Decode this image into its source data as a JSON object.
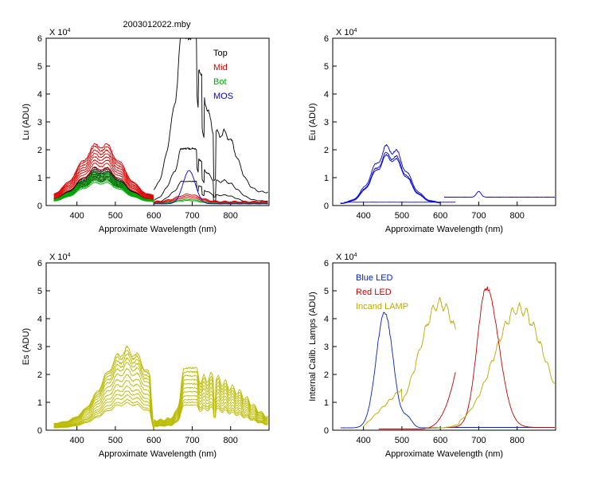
{
  "figure_title": "2003012022.mby",
  "colors": {
    "top": "#000000",
    "mid": "#dd0000",
    "bot": "#00aa00",
    "mos": "#0000dd",
    "es": "#bbbb00",
    "blue_led": "#0022cc",
    "red_led": "#cc0000",
    "lamp": "#bbaa00"
  },
  "chart_data": [
    {
      "id": "lu",
      "type": "line",
      "title": "2003012022.mby",
      "xlabel": "Approximate Wavelength (nm)",
      "ylabel": "Lu (ADU)",
      "multiplier_base": "X 10",
      "multiplier_exp": "4",
      "xlim": [
        320,
        900
      ],
      "ylim": [
        0,
        6
      ],
      "xticks": [
        "400",
        "500",
        "600",
        "700",
        "800"
      ],
      "yticks": [
        "0",
        "1",
        "2",
        "3",
        "4",
        "5",
        "6"
      ],
      "legend": [
        {
          "label": "Top",
          "color": "#000000"
        },
        {
          "label": "Mid",
          "color": "#dd0000"
        },
        {
          "label": "Bot",
          "color": "#00aa00"
        },
        {
          "label": "MOS",
          "color": "#0000dd"
        }
      ],
      "series": [
        {
          "name": "Top",
          "color": "#000000",
          "profile": "lu_vis",
          "scales": [
            0.92,
            0.98,
            1.04,
            1.1,
            1.16,
            1.22,
            1.28,
            1.34
          ]
        },
        {
          "name": "Mid",
          "color": "#dd0000",
          "profile": "lu_vis",
          "scales": [
            1.35,
            1.48,
            1.6,
            1.72,
            1.84,
            1.96,
            2.08,
            2.18
          ]
        },
        {
          "name": "Bot",
          "color": "#00aa00",
          "profile": "lu_vis",
          "scales": [
            0.82,
            0.88,
            0.94,
            1.0,
            1.06,
            1.12,
            1.18
          ]
        },
        {
          "name": "Top",
          "color": "#000000",
          "profile": "lu_ir",
          "scales": [
            0.85,
            2.0,
            5.9
          ]
        },
        {
          "name": "Mid",
          "color": "#dd0000",
          "profile": "lu_ir_low",
          "scales": [
            0.28,
            0.34,
            0.4
          ]
        },
        {
          "name": "Bot",
          "color": "#00aa00",
          "profile": "lu_ir_low",
          "scales": [
            0.18,
            0.22
          ]
        },
        {
          "name": "MOS",
          "color": "#0000dd",
          "profile": "mos_peak",
          "scales": [
            1.25
          ]
        }
      ]
    },
    {
      "id": "eu",
      "type": "line",
      "title": "",
      "xlabel": "Approximate Wavelength (nm)",
      "ylabel": "Eu  (ADU)",
      "multiplier_base": "X 10",
      "multiplier_exp": "4",
      "xlim": [
        320,
        900
      ],
      "ylim": [
        0,
        6
      ],
      "xticks": [
        "400",
        "500",
        "600",
        "700",
        "800"
      ],
      "yticks": [
        "0",
        "1",
        "2",
        "3",
        "4",
        "5",
        "6"
      ],
      "legend": [],
      "series": [
        {
          "name": "Eu",
          "color": "#0000dd",
          "profile": "eu_vis",
          "scales": [
            1.72,
            1.82,
            2.05
          ]
        },
        {
          "name": "Eu",
          "color": "#0000dd",
          "profile": "flat_vis",
          "scales": [
            0.12
          ]
        },
        {
          "name": "Eu",
          "color": "#0000dd",
          "profile": "eu_ir",
          "scales": [
            0.3
          ]
        }
      ]
    },
    {
      "id": "es",
      "type": "line",
      "title": "",
      "xlabel": "Approximate Wavelength (nm)",
      "ylabel": "Es  (ADU)",
      "multiplier_base": "X 10",
      "multiplier_exp": "4",
      "xlim": [
        320,
        900
      ],
      "ylim": [
        0,
        6
      ],
      "xticks": [
        "400",
        "500",
        "600",
        "700",
        "800"
      ],
      "yticks": [
        "0",
        "1",
        "2",
        "3",
        "4",
        "5",
        "6"
      ],
      "legend": [],
      "series": [
        {
          "name": "Es",
          "color": "#bbbb00",
          "profile": "es_vis",
          "scales": [
            0.95,
            1.05,
            1.2,
            1.35,
            1.5,
            1.7,
            1.9,
            2.1,
            2.3,
            2.45,
            2.6,
            2.75,
            2.85
          ]
        },
        {
          "name": "Es",
          "color": "#bbbb00",
          "profile": "es_ir",
          "scales": [
            0.95,
            1.05,
            1.15,
            1.3,
            1.45,
            1.6,
            1.75,
            1.9,
            2.05,
            2.2,
            2.35
          ]
        }
      ]
    },
    {
      "id": "lamps",
      "type": "line",
      "title": "",
      "xlabel": "Approximate Wavelength (nm)",
      "ylabel": "Internal Calib. Lamps (ADU)",
      "multiplier_base": "X 10",
      "multiplier_exp": "4",
      "xlim": [
        320,
        900
      ],
      "ylim": [
        0,
        6
      ],
      "xticks": [
        "400",
        "500",
        "600",
        "700",
        "800"
      ],
      "yticks": [
        "0",
        "1",
        "2",
        "3",
        "4",
        "5",
        "6"
      ],
      "legend": [
        {
          "label": "Blue LED",
          "color": "#0022cc"
        },
        {
          "label": "Red LED",
          "color": "#cc0000"
        },
        {
          "label": "Incand LAMP",
          "color": "#bbaa00"
        }
      ],
      "series": [
        {
          "name": "Blue LED",
          "color": "#0022cc",
          "profile": "blue_led",
          "scales": [
            4.2
          ]
        },
        {
          "name": "Blue LED",
          "color": "#0022cc",
          "profile": "flat_ir",
          "scales": [
            0.1
          ]
        },
        {
          "name": "Red LED",
          "color": "#cc0000",
          "profile": "red_led_vis",
          "scales": [
            2.1
          ]
        },
        {
          "name": "Red LED",
          "color": "#cc0000",
          "profile": "red_led_ir",
          "scales": [
            5.1
          ]
        },
        {
          "name": "Incand LAMP",
          "color": "#bbaa00",
          "profile": "lamp_vis",
          "scales": [
            4.55
          ]
        },
        {
          "name": "Incand LAMP",
          "color": "#bbaa00",
          "profile": "lamp_ir",
          "scales": [
            4.35
          ]
        }
      ]
    }
  ]
}
